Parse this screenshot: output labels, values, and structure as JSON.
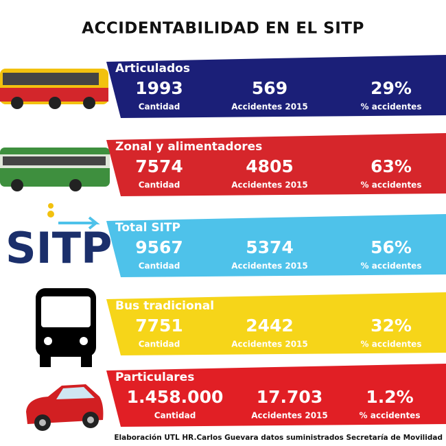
{
  "header": {
    "title": "ACCIDENTABILIDAD EN EL SITP"
  },
  "logo": "SITP",
  "rows": [
    {
      "name": "Articulados",
      "color": "#1b1f78",
      "stats": [
        {
          "value": "1993",
          "label": "Cantidad"
        },
        {
          "value": "569",
          "label": "Accidentes 2015"
        },
        {
          "value": "29%",
          "label": "% accidentes"
        }
      ]
    },
    {
      "name": "Zonal y alimentadores",
      "color": "#d6262b",
      "stats": [
        {
          "value": "7574",
          "label": "Cantidad"
        },
        {
          "value": "4805",
          "label": "Accidentes 2015"
        },
        {
          "value": "63%",
          "label": "% accidentes"
        }
      ]
    },
    {
      "name": "Total SITP",
      "color": "#4ec2ea",
      "stats": [
        {
          "value": "9567",
          "label": "Cantidad"
        },
        {
          "value": "5374",
          "label": "Accidentes 2015"
        },
        {
          "value": "56%",
          "label": "% accidentes"
        }
      ]
    },
    {
      "name": "Bus tradicional",
      "color": "#f6d519",
      "stats": [
        {
          "value": "7751",
          "label": "Cantidad"
        },
        {
          "value": "2442",
          "label": "Accidentes 2015"
        },
        {
          "value": "32%",
          "label": "% accidentes"
        }
      ]
    },
    {
      "name": "Particulares",
      "color": "#e11f25",
      "stats": [
        {
          "value": "1.458.000",
          "label": "Cantidad"
        },
        {
          "value": "17.703",
          "label": "Accidentes 2015"
        },
        {
          "value": "1.2%",
          "label": "% accidentes"
        }
      ]
    }
  ],
  "footer": "Elaboración UTL HR.Carlos Guevara datos suministrados Secretaría de Movilidad"
}
